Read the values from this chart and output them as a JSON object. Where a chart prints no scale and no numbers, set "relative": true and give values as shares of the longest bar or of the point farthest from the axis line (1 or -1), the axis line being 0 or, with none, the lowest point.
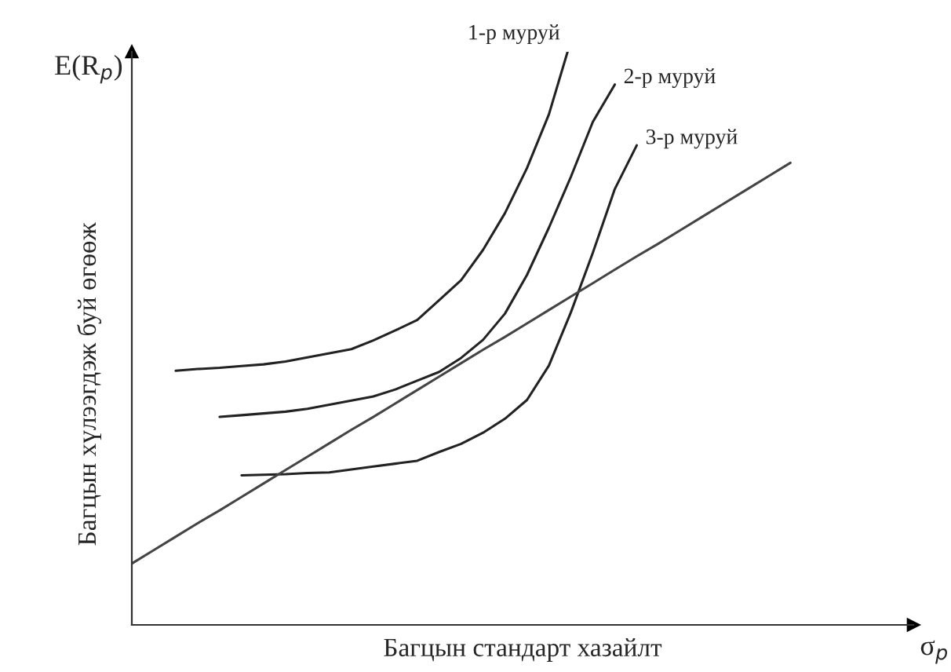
{
  "chart_data": {
    "type": "line",
    "relative": true,
    "marker": "none",
    "line_style": "solid",
    "xlabel": "Багцын стандарт хазайлт",
    "ylabel": "Багцын хүлээгдэж буй өгөөж",
    "annotations": [
      "E(R$_{p}$)",
      "σ$_{p}$",
      "1-р муруй",
      "2-р муруй",
      "3-р муруй"
    ],
    "categories": [
      null,
      null,
      null,
      null,
      null,
      null,
      null,
      null,
      null,
      null,
      null,
      null,
      null,
      null,
      null,
      null,
      null,
      null,
      null,
      null,
      null,
      null,
      null,
      null,
      null,
      null,
      null,
      null,
      null,
      null,
      null,
      null,
      null,
      null,
      null,
      null
    ],
    "series": [
      {
        "color": "#222222",
        "values": [
          null,
          null,
          0.435,
          0.438,
          0.44,
          0.443,
          0.446,
          0.451,
          0.458,
          0.465,
          0.472,
          0.487,
          0.504,
          0.522,
          0.556,
          0.59,
          0.642,
          0.705,
          0.782,
          0.874,
          1.0,
          null,
          null,
          null,
          null,
          null,
          null,
          null,
          null,
          null,
          null,
          null,
          null,
          null,
          null,
          null
        ]
      },
      {
        "color": "#222222",
        "values": [
          null,
          null,
          null,
          null,
          0.356,
          0.359,
          0.362,
          0.365,
          0.37,
          0.377,
          0.384,
          0.391,
          0.403,
          0.418,
          0.433,
          0.457,
          0.488,
          0.533,
          0.599,
          0.68,
          0.767,
          0.861,
          0.925,
          null,
          null,
          null,
          null,
          null,
          null,
          null,
          null,
          null,
          null,
          null,
          null,
          null
        ]
      },
      {
        "color": "#222222",
        "values": [
          null,
          null,
          null,
          null,
          null,
          0.256,
          0.257,
          0.258,
          0.26,
          0.261,
          0.266,
          0.271,
          0.276,
          0.281,
          0.296,
          0.31,
          0.329,
          0.353,
          0.385,
          0.444,
          0.535,
          0.637,
          0.746,
          0.821,
          null,
          null,
          null,
          null,
          null,
          null,
          null,
          null,
          null,
          null,
          null,
          null
        ]
      },
      {
        "color": "#444444",
        "values": [
          0.105,
          0.128,
          0.151,
          0.174,
          0.196,
          0.219,
          0.242,
          0.265,
          0.288,
          0.311,
          0.334,
          0.356,
          0.379,
          0.402,
          0.425,
          0.448,
          0.471,
          0.493,
          0.516,
          0.539,
          0.562,
          0.585,
          0.608,
          0.631,
          0.653,
          0.676,
          0.699,
          0.722,
          0.745,
          0.768,
          0.791,
          null,
          null,
          null,
          null,
          null
        ]
      }
    ]
  }
}
